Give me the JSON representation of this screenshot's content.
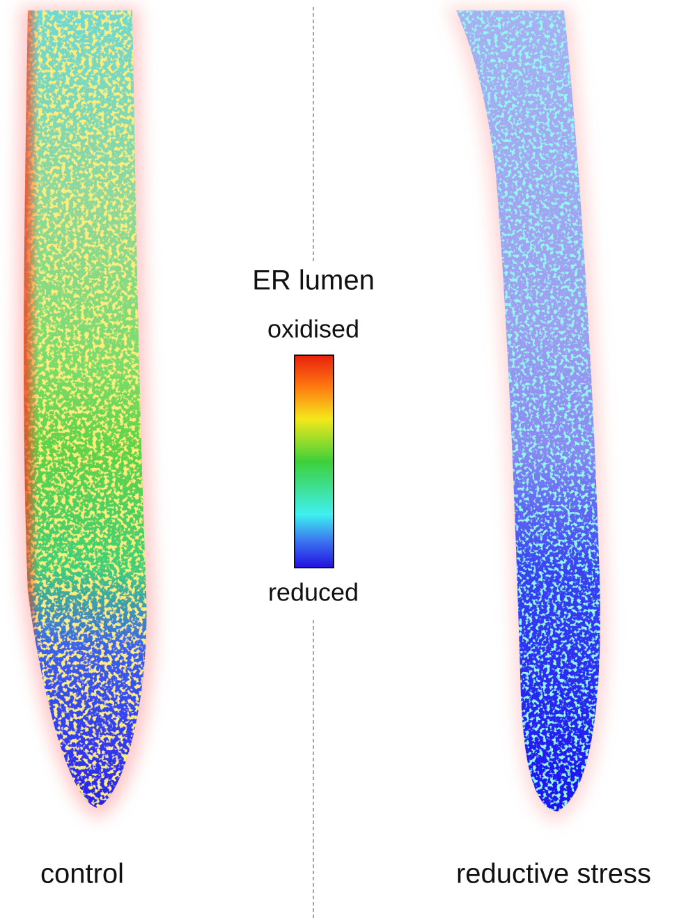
{
  "legend": {
    "title": "ER lumen",
    "top_label": "oxidised",
    "bottom_label": "reduced"
  },
  "panels": [
    {
      "label": "control"
    },
    {
      "label": "reductive stress"
    }
  ]
}
